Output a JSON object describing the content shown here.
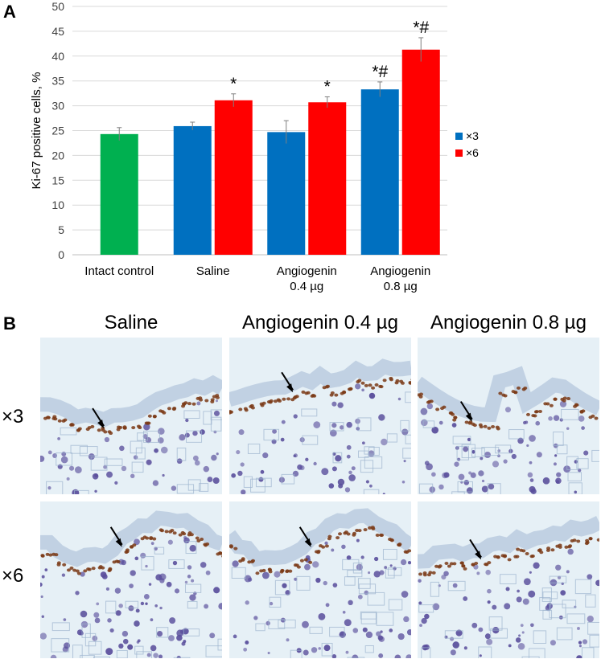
{
  "panel_a_label": "A",
  "panel_b_label": "B",
  "chart_data": {
    "type": "bar",
    "ylabel": "Ki-67 positive cells, %",
    "ylim": [
      0,
      50
    ],
    "yticks": [
      0,
      5,
      10,
      15,
      20,
      25,
      30,
      35,
      40,
      45,
      50
    ],
    "grid": true,
    "legend_position": "right",
    "groups": [
      {
        "label": [
          "Intact control"
        ],
        "bars": [
          {
            "series": "control",
            "value": 24.3,
            "error": 1.3,
            "annotation": "",
            "color": "#00b050"
          }
        ]
      },
      {
        "label": [
          "Saline"
        ],
        "bars": [
          {
            "series": "×3",
            "value": 25.9,
            "error": 0.8,
            "annotation": "",
            "color": "#0070c0"
          },
          {
            "series": "×6",
            "value": 31.1,
            "error": 1.3,
            "annotation": "*",
            "color": "#ff0000"
          }
        ]
      },
      {
        "label": [
          "Angiogenin",
          "0.4 µg"
        ],
        "bars": [
          {
            "series": "×3",
            "value": 24.7,
            "error": 2.3,
            "annotation": "",
            "color": "#0070c0"
          },
          {
            "series": "×6",
            "value": 30.7,
            "error": 1.1,
            "annotation": "*",
            "color": "#ff0000"
          }
        ]
      },
      {
        "label": [
          "Angiogenin",
          "0.8 µg"
        ],
        "bars": [
          {
            "series": "×3",
            "value": 33.3,
            "error": 1.5,
            "annotation": "*#",
            "color": "#0070c0"
          },
          {
            "series": "×6",
            "value": 41.3,
            "error": 2.4,
            "annotation": "*#",
            "color": "#ff0000"
          }
        ]
      }
    ],
    "legend": [
      {
        "name": "×3",
        "color": "#0070c0"
      },
      {
        "name": "×6",
        "color": "#ff0000"
      }
    ]
  },
  "micrographs": {
    "column_titles": [
      "Saline",
      "Angiogenin 0.4 µg",
      "Angiogenin 0.8 µg"
    ],
    "row_labels": [
      "×3",
      "×6"
    ],
    "stain_colors": {
      "background": "#e6f0f6",
      "nuclei": "#5a4f9c",
      "positive": "#7a3a16",
      "epidermis": "#b8c9de"
    }
  }
}
